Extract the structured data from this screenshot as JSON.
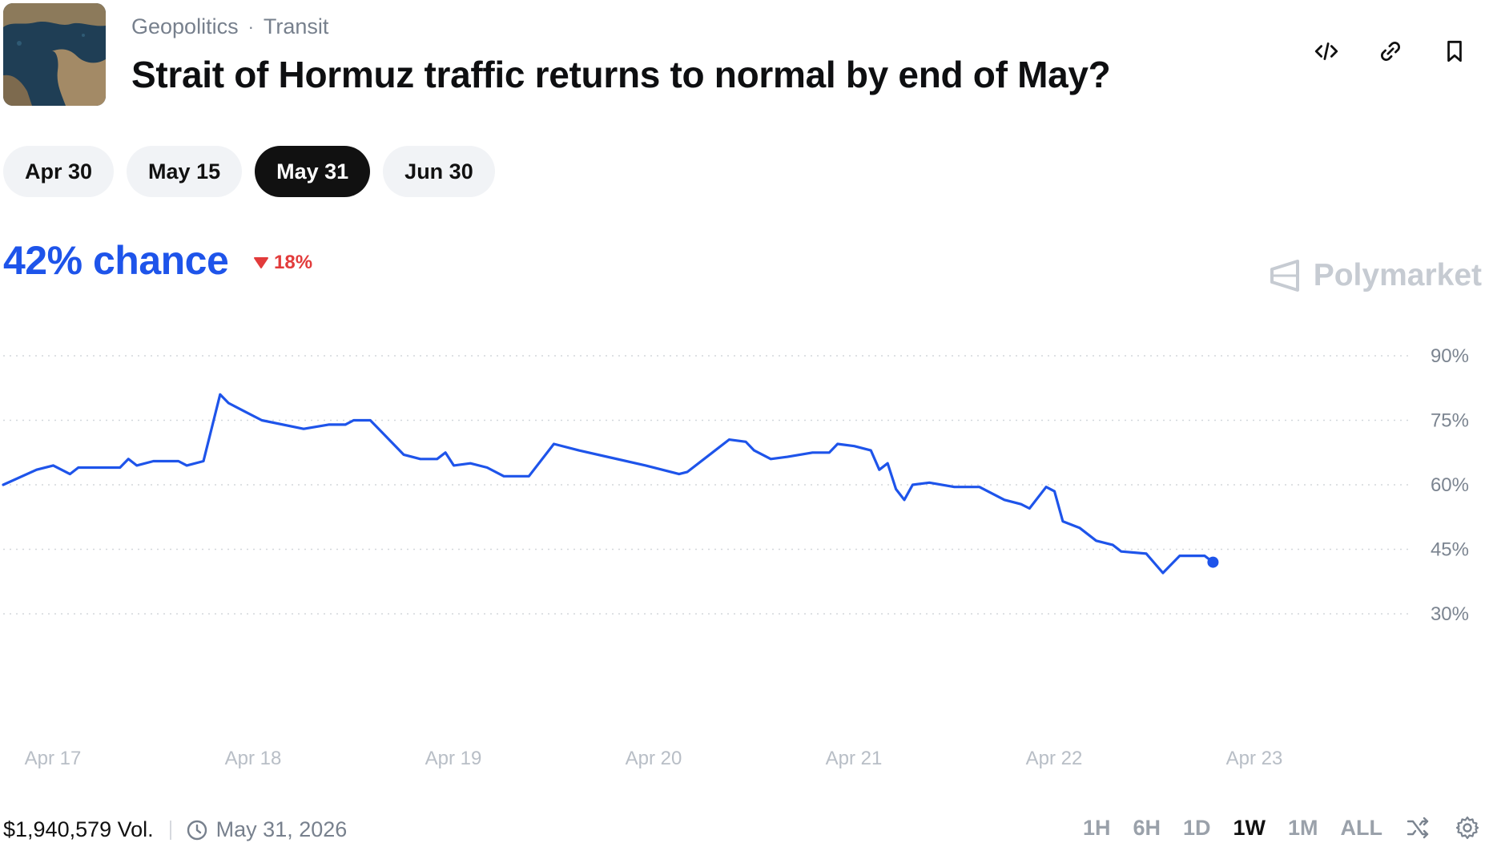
{
  "header": {
    "thumbnail": "strait-of-hormuz-satellite-thumbnail",
    "breadcrumb": [
      "Geopolitics",
      "Transit"
    ],
    "breadcrumb_separator": "·",
    "title": "Strait of Hormuz traffic returns to normal by end of May?",
    "actions": [
      "embed-code-icon",
      "link-icon",
      "bookmark-icon"
    ]
  },
  "date_tabs": [
    {
      "label": "Apr 30",
      "active": false
    },
    {
      "label": "May 15",
      "active": false
    },
    {
      "label": "May 31",
      "active": true
    },
    {
      "label": "Jun 30",
      "active": false
    }
  ],
  "summary": {
    "chance": "42% chance",
    "change": "18%",
    "change_direction": "down",
    "change_color": "#e23b3b",
    "accent_color": "#1e54ea"
  },
  "brand": {
    "name": "Polymarket"
  },
  "chart_data": {
    "type": "line",
    "title": "",
    "xlabel": "",
    "ylabel": "",
    "x_ticks": [
      "Apr 17",
      "Apr 18",
      "Apr 19",
      "Apr 20",
      "Apr 21",
      "Apr 22",
      "Apr 23"
    ],
    "y_ticks": [
      "90%",
      "75%",
      "60%",
      "45%",
      "30%"
    ],
    "ylim": [
      30,
      90
    ],
    "grid": "horizontal dotted",
    "line_color": "#1e54ea",
    "series": [
      {
        "values": [
          [
            "Apr 17 00:00",
            60
          ],
          [
            "Apr 17 04:00",
            63.5
          ],
          [
            "Apr 17 06:00",
            64.5
          ],
          [
            "Apr 17 08:00",
            62.5
          ],
          [
            "Apr 17 09:00",
            64
          ],
          [
            "Apr 17 14:00",
            64
          ],
          [
            "Apr 17 15:00",
            66
          ],
          [
            "Apr 17 16:00",
            64.5
          ],
          [
            "Apr 17 18:00",
            65.5
          ],
          [
            "Apr 17 21:00",
            65.5
          ],
          [
            "Apr 17 22:00",
            64.5
          ],
          [
            "Apr 18 00:00",
            65.5
          ],
          [
            "Apr 18 02:00",
            81
          ],
          [
            "Apr 18 03:00",
            79
          ],
          [
            "Apr 18 05:00",
            77
          ],
          [
            "Apr 18 07:00",
            75
          ],
          [
            "Apr 18 12:00",
            73
          ],
          [
            "Apr 18 15:00",
            74
          ],
          [
            "Apr 18 17:00",
            74
          ],
          [
            "Apr 18 18:00",
            75
          ],
          [
            "Apr 18 20:00",
            75
          ],
          [
            "Apr 18 21:00",
            73
          ],
          [
            "Apr 19 00:00",
            67
          ],
          [
            "Apr 19 02:00",
            66
          ],
          [
            "Apr 19 04:00",
            66
          ],
          [
            "Apr 19 05:00",
            67.5
          ],
          [
            "Apr 19 06:00",
            64.5
          ],
          [
            "Apr 19 08:00",
            65
          ],
          [
            "Apr 19 10:00",
            64
          ],
          [
            "Apr 19 12:00",
            62
          ],
          [
            "Apr 19 15:00",
            62
          ],
          [
            "Apr 19 18:00",
            69.5
          ],
          [
            "Apr 19 21:00",
            68
          ],
          [
            "Apr 20 05:00",
            64.5
          ],
          [
            "Apr 20 09:00",
            62.5
          ],
          [
            "Apr 20 10:00",
            63
          ],
          [
            "Apr 20 15:00",
            70.5
          ],
          [
            "Apr 20 17:00",
            70
          ],
          [
            "Apr 20 18:00",
            68
          ],
          [
            "Apr 20 20:00",
            66
          ],
          [
            "Apr 20 22:00",
            66.5
          ],
          [
            "Apr 21 01:00",
            67.5
          ],
          [
            "Apr 21 03:00",
            67.5
          ],
          [
            "Apr 21 04:00",
            69.5
          ],
          [
            "Apr 21 06:00",
            69
          ],
          [
            "Apr 21 08:00",
            68
          ],
          [
            "Apr 21 09:00",
            63.5
          ],
          [
            "Apr 21 10:00",
            65
          ],
          [
            "Apr 21 11:00",
            59
          ],
          [
            "Apr 21 12:00",
            56.5
          ],
          [
            "Apr 21 13:00",
            60
          ],
          [
            "Apr 21 15:00",
            60.5
          ],
          [
            "Apr 21 18:00",
            59.5
          ],
          [
            "Apr 21 21:00",
            59.5
          ],
          [
            "Apr 22 00:00",
            56.5
          ],
          [
            "Apr 22 02:00",
            55.5
          ],
          [
            "Apr 22 03:00",
            54.5
          ],
          [
            "Apr 22 05:00",
            59.5
          ],
          [
            "Apr 22 06:00",
            58.5
          ],
          [
            "Apr 22 07:00",
            51.5
          ],
          [
            "Apr 22 09:00",
            50
          ],
          [
            "Apr 22 11:00",
            47
          ],
          [
            "Apr 22 13:00",
            46
          ],
          [
            "Apr 22 14:00",
            44.5
          ],
          [
            "Apr 22 17:00",
            44
          ],
          [
            "Apr 22 19:00",
            39.5
          ],
          [
            "Apr 22 21:00",
            43.5
          ],
          [
            "Apr 23 00:00",
            43.5
          ],
          [
            "Apr 23 01:00",
            42
          ]
        ]
      }
    ]
  },
  "footer": {
    "volume": "$1,940,579 Vol.",
    "end_date": "May 31, 2026"
  },
  "time_ranges": [
    {
      "label": "1H",
      "active": false
    },
    {
      "label": "6H",
      "active": false
    },
    {
      "label": "1D",
      "active": false
    },
    {
      "label": "1W",
      "active": true
    },
    {
      "label": "1M",
      "active": false
    },
    {
      "label": "ALL",
      "active": false
    }
  ],
  "footer_icons": [
    "shuffle-icon",
    "settings-gear-icon"
  ]
}
